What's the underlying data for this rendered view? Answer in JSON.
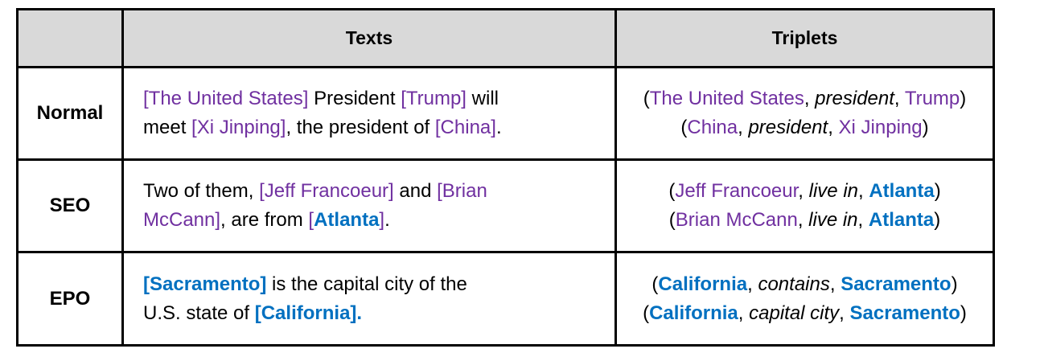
{
  "header": {
    "col1": "",
    "col2": "Texts",
    "col3": "Triplets"
  },
  "rows": [
    {
      "label": "Normal",
      "text_lines": [
        [
          {
            "t": "[The United States]",
            "s": "p"
          },
          {
            "t": " President ",
            "s": ""
          },
          {
            "t": "[Trump]",
            "s": "p"
          },
          {
            "t": " will",
            "s": ""
          }
        ],
        [
          {
            "t": "meet ",
            "s": ""
          },
          {
            "t": "[Xi Jinping]",
            "s": "p"
          },
          {
            "t": ", the president of ",
            "s": ""
          },
          {
            "t": "[China]",
            "s": "p"
          },
          {
            "t": ".",
            "s": ""
          }
        ]
      ],
      "triplets": [
        {
          "subject": "The United States",
          "relation": "president",
          "object": "Trump",
          "subject_style": "p",
          "object_style": "p"
        },
        {
          "subject": "China",
          "relation": "president",
          "object": "Xi Jinping",
          "subject_style": "p",
          "object_style": "p"
        }
      ]
    },
    {
      "label": "SEO",
      "text_lines": [
        [
          {
            "t": "Two of them, ",
            "s": ""
          },
          {
            "t": "[Jeff Francoeur]",
            "s": "p"
          },
          {
            "t": " and ",
            "s": ""
          },
          {
            "t": "[Brian",
            "s": "p"
          }
        ],
        [
          {
            "t": "McCann]",
            "s": "p"
          },
          {
            "t": ", are from ",
            "s": ""
          },
          {
            "t": "[",
            "s": "p"
          },
          {
            "t": "Atlanta",
            "s": "b"
          },
          {
            "t": "]",
            "s": "p"
          },
          {
            "t": ".",
            "s": ""
          }
        ]
      ],
      "triplets": [
        {
          "subject": "Jeff Francoeur",
          "relation": "live in",
          "object": "Atlanta",
          "subject_style": "p",
          "object_style": "b"
        },
        {
          "subject": "Brian McCann",
          "relation": "live in",
          "object": "Atlanta",
          "subject_style": "p",
          "object_style": "b"
        }
      ]
    },
    {
      "label": "EPO",
      "text_lines": [
        [
          {
            "t": "[Sacramento]",
            "s": "b"
          },
          {
            "t": " is the capital city of the",
            "s": ""
          }
        ],
        [
          {
            "t": "U.S. state of ",
            "s": ""
          },
          {
            "t": "[California].",
            "s": "b"
          }
        ]
      ],
      "triplets": [
        {
          "subject": "California",
          "relation": "contains",
          "object": "Sacramento",
          "subject_style": "b",
          "object_style": "b"
        },
        {
          "subject": "California",
          "relation": "capital city",
          "object": "Sacramento",
          "subject_style": "b",
          "object_style": "b"
        }
      ]
    }
  ],
  "colors": {
    "entity_purple": "#7030a0",
    "entity_blue": "#0070c0",
    "header_bg": "#d9d9d9"
  }
}
